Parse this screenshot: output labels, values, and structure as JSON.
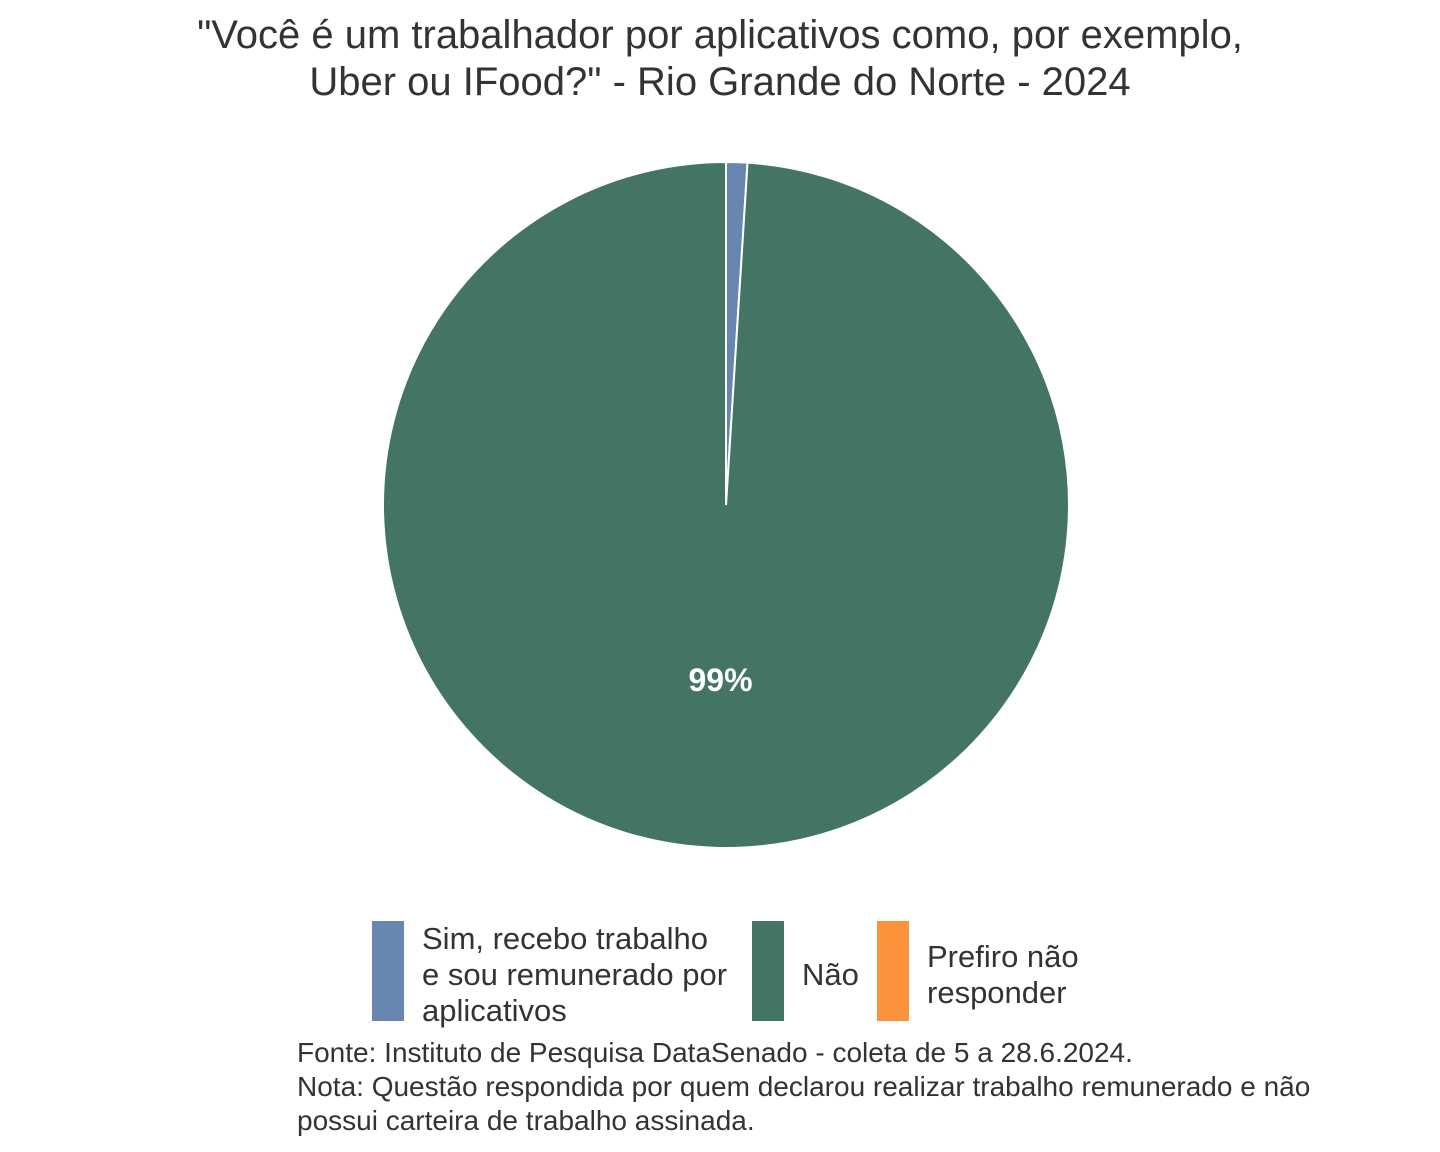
{
  "chart_data": {
    "type": "pie",
    "title_lines": [
      "\"Você é um trabalhador por aplicativos como, por exemplo,",
      "Uber ou IFood?\" - Rio Grande do Norte - 2024"
    ],
    "slices": [
      {
        "label": "Sim, recebo trabalho e sou remunerado por aplicativos",
        "legend_lines": [
          "Sim, recebo trabalho",
          "e sou remunerado por",
          "aplicativos"
        ],
        "value": 1,
        "color": "#6787b0",
        "data_label": ""
      },
      {
        "label": "Não",
        "legend_lines": [
          "Não"
        ],
        "value": 99,
        "color": "#447564",
        "data_label": "99%"
      },
      {
        "label": "Prefiro não responder",
        "legend_lines": [
          "Prefiro não",
          "responder"
        ],
        "value": 0,
        "color": "#fb923c",
        "data_label": ""
      }
    ],
    "start_angle_deg": 0,
    "direction": "clockwise",
    "legend_position": "bottom"
  },
  "caption_lines": [
    "Fonte: Instituto de Pesquisa DataSenado - coleta de 5 a 28.6.2024.",
    "Nota: Questão respondida por quem declarou realizar trabalho remunerado e não",
    "possui carteira de trabalho assinada."
  ]
}
